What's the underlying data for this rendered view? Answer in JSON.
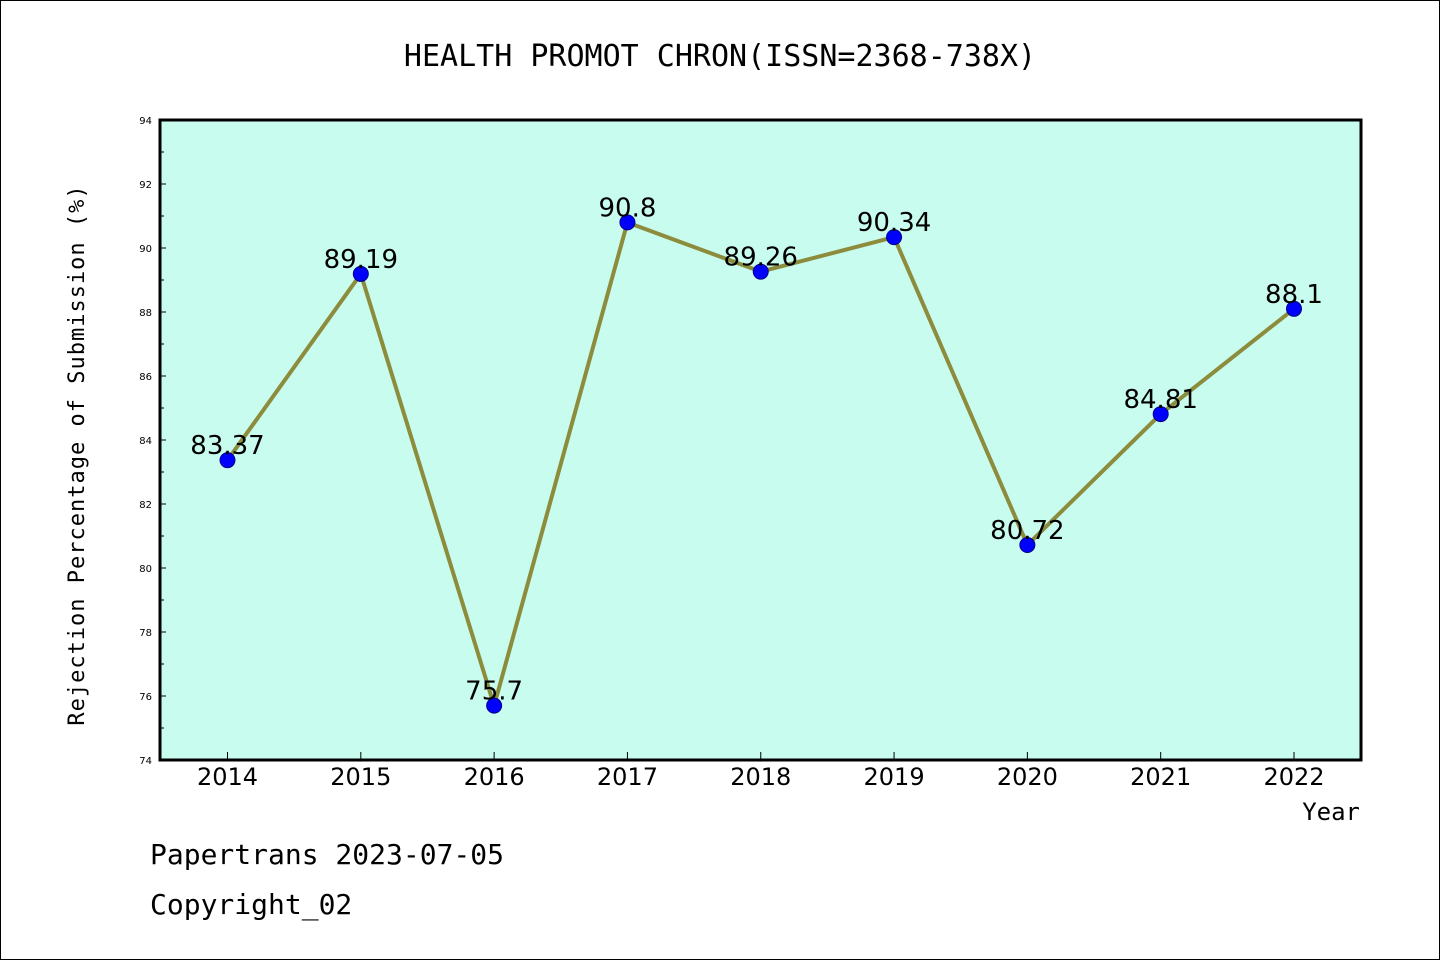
{
  "chart_data": {
    "type": "line",
    "title": "HEALTH PROMOT CHRON(ISSN=2368-738X)",
    "xlabel": "Year",
    "ylabel": "Rejection Percentage of Submission (%)",
    "categories": [
      "2014",
      "2015",
      "2016",
      "2017",
      "2018",
      "2019",
      "2020",
      "2021",
      "2022"
    ],
    "series": [
      {
        "values": [
          83.37,
          89.19,
          75.7,
          90.8,
          89.26,
          90.34,
          80.72,
          84.81,
          88.1
        ],
        "labels": [
          "83.37",
          "89.19",
          "75.7",
          "90.8",
          "89.26",
          "90.34",
          "80.72",
          "84.81",
          "88.1"
        ]
      }
    ],
    "ylim": [
      74,
      94
    ],
    "yticks": [
      "74",
      "76",
      "78",
      "80",
      "82",
      "84",
      "86",
      "88",
      "90",
      "92",
      "94"
    ],
    "grid": false,
    "colors": {
      "plot_background": "#c8fcee",
      "line": "#8c8c3c",
      "marker": "#0000ff"
    }
  },
  "footer": {
    "line1": "Papertrans 2023-07-05",
    "line2": "Copyright_02"
  }
}
